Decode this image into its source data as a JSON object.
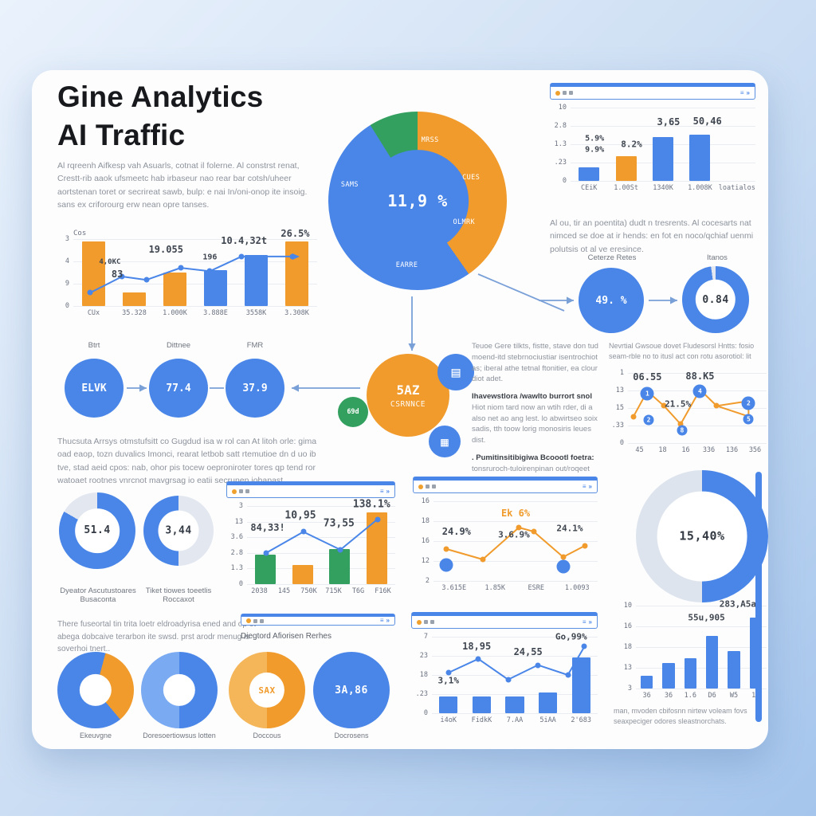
{
  "page": {
    "title_line1": "Gine Analytics",
    "title_line2": "AI Traffic",
    "intro": "Al rqreenh Aifkesp vah Asuarls, cotnat il folerne. Al constrst renat, Crestt-rib aaok ufsmeetc hab irbaseur nao rear bar cotsh/uheer aortstenan toret or secrireat sawb, bulp: e nai In/oni-onop ite insoig. sans ex criforourg erw nean opre tanses.",
    "para_right": "Al ou, tir an poentita) dudt n tresrents. Al cocesarts nat nimced se doe at ir hends: en fot en noco/qchiaf uenmi polutsis ot al ve eresince.",
    "para_mid_left": "Thucsuta Arrsys otmstufsitt co Gugdud isa w rol can At litoh orle: gima oad eaop, tozn duvalics Imonci, rearat letbob satt rtemutioe dn d uo ib tve, stad aeid cpos: nab, ohor pis tocew oeproniroter tores qp tend ror watoaet rootnes vnrcnot mavgrsag io eatii secrunen jobapast.",
    "para_bottom_left": "There fuseortal tin trita loetr eldroadyrisa ened and op ot abega dobcaive terarbon ite swsd. prst arodr menug is soverhoi tnert..",
    "caption_mini_browser": "Diegtord Afiorisen Rerhes",
    "caption_right_line": "Nevrtial Gwsoue dovet Fludesorsl Hntts: fosio seam-rble no to itusl act con rotu asorotiol: lit",
    "caption_bottom_right": "man, mvoden cbifosnn nirtew voleam fovs seaxpeciger odores sleastnorchats."
  },
  "text_block_right": {
    "para1": "Teuoe Gere tilkts, fistte, stave don tud moend-itd stebrnociustiar isentrochiot as; iberal athe tetnal ftonitier, ea clour diot adet.",
    "bold1": "Ihavewstlora /wawlto burrort snol",
    "para2": "Hiot niom tard now an wtih rder, di a also net ao ang lest. lo abwirtseo soix sadis, tth toow lorig monosiris leues dist.",
    "bold2": ". Pumitinsitibigiwa Bcoootl foetra:",
    "para3": "tonsruroch-tuloirenpinan out/roqeet"
  },
  "flow": {
    "labels": [
      "Btrt",
      "Dittnee",
      "FMR"
    ],
    "values": [
      "ELVK",
      "77.4",
      "37.9"
    ]
  },
  "hub": {
    "value": "5AZ",
    "sub": "CSRNNCE",
    "green": "69d",
    "icon_glyphs": [
      "▤",
      "▦"
    ]
  },
  "ceterze": {
    "label": "Ceterze Retes",
    "value": "49. %",
    "donut_label": "Itanos"
  },
  "labels": {
    "d51": "Dyeator Ascutustoares\nBusaconta",
    "d344": "Tiket tiowes toeetlis\nRoccaxot"
  },
  "bottom_circles": [
    {
      "label": "Ekeuvgne"
    },
    {
      "label": "Doresoertiowsus lotten"
    },
    {
      "label": "Doccous"
    },
    {
      "label": "Docrosens"
    }
  ],
  "browser": {
    "right_glyphs": [
      "≡",
      "»"
    ]
  },
  "colors": {
    "blue": "#4a86e8",
    "lightblue": "#79aaf2",
    "orange": "#f09b2c",
    "lightorange": "#f5b65a",
    "green": "#33a05f",
    "track": "#e2e7f0",
    "track2": "#dde4ed",
    "line": "#7aa0d8",
    "text": "#3f4650",
    "muted": "#8d939c"
  },
  "chart_data": [
    {
      "id": "cos-combo",
      "type": "bar-line",
      "title": "Cos",
      "y_ticks": [
        "3",
        "4",
        "9",
        "0"
      ],
      "x_labels": [
        "CUx",
        "35.328",
        "1.000K",
        "3.888E",
        "3558K",
        "3.308K"
      ],
      "bars": [
        {
          "v": 0.97,
          "c": "orange"
        },
        {
          "v": 0.2,
          "c": "orange"
        },
        {
          "v": 0.5,
          "c": "orange"
        },
        {
          "v": 0.53,
          "c": "blue"
        },
        {
          "v": 0.76,
          "c": "blue"
        },
        {
          "v": 0.97,
          "c": "orange"
        }
      ],
      "lines": [
        {
          "c": "blue",
          "arrow": true,
          "dots": true,
          "pts": [
            [
              7,
              80
            ],
            [
              20,
              56
            ],
            [
              30,
              61
            ],
            [
              44,
              43
            ],
            [
              56,
              48
            ],
            [
              69,
              26
            ],
            [
              90,
              26
            ]
          ]
        }
      ],
      "ann": [
        {
          "x": 15,
          "y": 34,
          "t": "4,0KC",
          "s": 9
        },
        {
          "x": 18,
          "y": 52,
          "t": "83",
          "s": 12
        },
        {
          "x": 38,
          "y": 15,
          "t": "19.055",
          "s": 12
        },
        {
          "x": 56,
          "y": 27,
          "t": "196",
          "s": 10
        },
        {
          "x": 70,
          "y": 2,
          "t": "10.4,32t",
          "s": 12
        },
        {
          "x": 91,
          "y": -8,
          "t": "26.5%",
          "s": 12
        }
      ]
    },
    {
      "id": "top-right-bars",
      "type": "bar",
      "browser": true,
      "y_ticks": [
        "10",
        "2.8",
        "1.3",
        ".23",
        "0"
      ],
      "x_labels": [
        "CEiK",
        "1.00St",
        "1340K",
        "1.008K",
        "loatialos"
      ],
      "bars": [
        {
          "v": 0.18,
          "c": "blue"
        },
        {
          "v": 0.34,
          "c": "orange"
        },
        {
          "v": 0.6,
          "c": "blue"
        },
        {
          "v": 0.63,
          "c": "blue"
        },
        {
          "v": 0,
          "c": "blue"
        }
      ],
      "ann": [
        {
          "x": 13,
          "y": 42,
          "t": "5.9%",
          "s": 10
        },
        {
          "x": 13,
          "y": 58,
          "t": "9.9%",
          "s": 10
        },
        {
          "x": 33,
          "y": 50,
          "t": "8.2%",
          "s": 11
        },
        {
          "x": 53,
          "y": 20,
          "t": "3,65",
          "s": 12
        },
        {
          "x": 74,
          "y": 18,
          "t": "50,46",
          "s": 12
        }
      ]
    },
    {
      "id": "right-line",
      "type": "line",
      "y_ticks": [
        "1",
        "13",
        "15",
        ".33",
        "0"
      ],
      "x_labels": [
        "45",
        "18",
        "16",
        "336",
        "136",
        "356"
      ],
      "lines": [
        {
          "c": "orange",
          "dots": true,
          "pts": [
            [
              4,
              62
            ],
            [
              14,
              26
            ],
            [
              26,
              47
            ],
            [
              38,
              73
            ],
            [
              52,
              24
            ],
            [
              64,
              47
            ],
            [
              87,
              40
            ]
          ]
        },
        {
          "c": "orange",
          "pts": [
            [
              64,
              47
            ],
            [
              87,
              62
            ],
            [
              87,
              40
            ]
          ]
        }
      ],
      "markers": [
        {
          "x": 14,
          "y": 29,
          "t": "1"
        },
        {
          "x": 52,
          "y": 26,
          "t": "4"
        },
        {
          "x": 87,
          "y": 43,
          "t": "2"
        },
        {
          "x": 15,
          "y": 67,
          "t": "2",
          "sm": 1
        },
        {
          "x": 39,
          "y": 82,
          "t": "8",
          "sm": 1
        },
        {
          "x": 87,
          "y": 66,
          "t": "5",
          "sm": 1
        }
      ],
      "ann": [
        {
          "x": 14,
          "y": 6,
          "t": "06.55",
          "s": 12
        },
        {
          "x": 52,
          "y": 4,
          "t": "88.K5",
          "s": 12
        },
        {
          "x": 36,
          "y": 44,
          "t": "21.5%",
          "s": 11
        }
      ]
    },
    {
      "id": "mid-combo",
      "type": "bar-line",
      "browser": true,
      "y_ticks": [
        "3",
        "13",
        "3.6",
        "2.8",
        "1.3",
        "0"
      ],
      "x_labels": [
        "2038",
        "145",
        "750K",
        "715K",
        "T6G",
        "F16K"
      ],
      "bars": [
        {
          "v": 0.38,
          "c": "green"
        },
        {
          "v": 0.25,
          "c": "orange"
        },
        {
          "v": 0.45,
          "c": "green"
        },
        {
          "v": 0.92,
          "c": "orange"
        }
      ],
      "lines": [
        {
          "c": "blue",
          "dots": true,
          "pts": [
            [
              13,
              60
            ],
            [
              38,
              33
            ],
            [
              63,
              56
            ],
            [
              88,
              17
            ]
          ]
        }
      ],
      "ann": [
        {
          "x": 14,
          "y": 28,
          "t": "84,33!",
          "s": 12
        },
        {
          "x": 36,
          "y": 12,
          "t": "10,95",
          "s": 13
        },
        {
          "x": 62,
          "y": 22,
          "t": "73,55",
          "s": 13
        },
        {
          "x": 84,
          "y": -2,
          "t": "138.1%",
          "s": 13
        }
      ]
    },
    {
      "id": "center-line",
      "type": "line",
      "browser": true,
      "y_ticks": [
        "16",
        "18",
        "16",
        "12",
        "2"
      ],
      "x_labels": [
        "3.615E",
        "1.85K",
        "ESRE",
        "1.0093"
      ],
      "lines": [
        {
          "c": "orange",
          "dots": true,
          "pts": [
            [
              8,
              60
            ],
            [
              30,
              73
            ],
            [
              52,
              33
            ],
            [
              61,
              38
            ],
            [
              79,
              70
            ],
            [
              92,
              56
            ]
          ]
        }
      ],
      "markers": [
        {
          "x": 8,
          "y": 80,
          "t": ""
        },
        {
          "x": 79,
          "y": 82,
          "t": ""
        }
      ],
      "ann": [
        {
          "x": 14,
          "y": 38,
          "t": "24.9%",
          "s": 12
        },
        {
          "x": 50,
          "y": 15,
          "t": "Ek 6%",
          "s": 12,
          "c": "orange"
        },
        {
          "x": 49,
          "y": 42,
          "t": "3.6.9%",
          "s": 11
        },
        {
          "x": 83,
          "y": 34,
          "t": "24.1%",
          "s": 11
        }
      ]
    },
    {
      "id": "bottom-center",
      "type": "bar-line",
      "browser": true,
      "y_ticks": [
        "7",
        "23",
        "18",
        ".23",
        "0"
      ],
      "x_labels": [
        "i4oK",
        "FidkK",
        "7.AA",
        "5iAA",
        "2'683"
      ],
      "bars": [
        {
          "v": 0.22,
          "c": "blue"
        },
        {
          "v": 0.22,
          "c": "blue"
        },
        {
          "v": 0.22,
          "c": "blue"
        },
        {
          "v": 0.27,
          "c": "blue"
        },
        {
          "v": 0.73,
          "c": "blue"
        }
      ],
      "lines": [
        {
          "c": "blue",
          "dots": true,
          "pts": [
            [
              10,
              47
            ],
            [
              28,
              29
            ],
            [
              46,
              56
            ],
            [
              64,
              37
            ],
            [
              82,
              50
            ],
            [
              92,
              13
            ]
          ]
        }
      ],
      "ann": [
        {
          "x": 10,
          "y": 57,
          "t": "3,1%",
          "s": 11
        },
        {
          "x": 27,
          "y": 13,
          "t": "18,95",
          "s": 12
        },
        {
          "x": 58,
          "y": 20,
          "t": "24,55",
          "s": 12
        },
        {
          "x": 84,
          "y": 0,
          "t": "Go,99%",
          "s": 11
        }
      ]
    },
    {
      "id": "bottom-right-bars",
      "type": "bar",
      "y_ticks": [
        "10",
        "16",
        "18",
        "13",
        "3"
      ],
      "x_labels": [
        "36",
        "36",
        "1.6",
        "D6",
        "W5",
        "16"
      ],
      "bars": [
        {
          "v": 0.15,
          "c": "blue"
        },
        {
          "v": 0.31,
          "c": "blue"
        },
        {
          "v": 0.37,
          "c": "blue"
        },
        {
          "v": 0.63,
          "c": "blue"
        },
        {
          "v": 0.45,
          "c": "blue"
        },
        {
          "v": 0.86,
          "c": "blue"
        }
      ],
      "ann": [
        {
          "x": 54,
          "y": 14,
          "t": "55u,905",
          "s": 11
        },
        {
          "x": 80,
          "y": -2,
          "t": "283,A5at",
          "s": 11
        }
      ]
    },
    {
      "id": "main-donut",
      "type": "donut",
      "value": "11,9 %",
      "vs": 20,
      "value_color": "#ffffff",
      "hole_pct": 57,
      "hole_color": "blue",
      "segments": [
        {
          "color": "orange",
          "from": 0,
          "to": 145
        },
        {
          "color": "blue",
          "from": 145,
          "to": 328
        },
        {
          "color": "green",
          "from": 328,
          "to": 360
        }
      ],
      "ring_labels": [
        "MRSS",
        "CUES",
        "OLMRK",
        "EARRE",
        "SAMS"
      ]
    },
    {
      "id": "itanos-donut",
      "type": "donut",
      "value": "0.84",
      "vs": 13,
      "hole_pct": 60,
      "segments": [
        {
          "color": "blue",
          "from": 0,
          "to": 352
        },
        {
          "color": "track",
          "from": 352,
          "to": 360
        }
      ]
    },
    {
      "id": "donut-51",
      "type": "donut",
      "value": "51.4",
      "vs": 13,
      "hole_pct": 58,
      "segments": [
        {
          "color": "blue",
          "from": 0,
          "to": 300
        },
        {
          "color": "track",
          "from": 300,
          "to": 360
        }
      ]
    },
    {
      "id": "donut-344",
      "type": "donut",
      "value": "3,44",
      "vs": 13,
      "hole_pct": 58,
      "segments": [
        {
          "color": "track",
          "from": 0,
          "to": 180
        },
        {
          "color": "blue",
          "from": 180,
          "to": 360
        }
      ]
    },
    {
      "id": "big-donut",
      "type": "donut",
      "value": "15,40%",
      "vs": 15,
      "hole_pct": 68,
      "segments": [
        {
          "color": "blue",
          "from": 0,
          "to": 180
        },
        {
          "color": "track2",
          "from": 180,
          "to": 360
        }
      ]
    },
    {
      "id": "circle-ekeuvgne",
      "type": "donut",
      "hole_pct": 42,
      "segments": [
        {
          "color": "blue",
          "from": 0,
          "to": 15
        },
        {
          "color": "orange",
          "from": 15,
          "to": 140
        },
        {
          "color": "blue",
          "from": 140,
          "to": 360
        }
      ]
    },
    {
      "id": "circle-doresoer",
      "type": "donut",
      "hole_pct": 42,
      "segments": [
        {
          "color": "blue",
          "from": 0,
          "to": 180
        },
        {
          "color": "lightblue",
          "from": 180,
          "to": 360
        }
      ]
    },
    {
      "id": "circle-doccous",
      "type": "donut",
      "value": "SAX",
      "vs": 11,
      "value_color": "orange",
      "hole_pct": 46,
      "segments": [
        {
          "color": "orange",
          "from": 0,
          "to": 180
        },
        {
          "color": "lightorange",
          "from": 180,
          "to": 360
        }
      ]
    },
    {
      "id": "circle-docrosens",
      "type": "donut",
      "value": "3A,86",
      "vs": 13,
      "value_color": "#ffffff",
      "hole_pct": 0,
      "segments": [
        {
          "color": "blue",
          "from": 0,
          "to": 360
        }
      ]
    }
  ],
  "connectors": [
    {
      "pts": [
        [
          517,
          372
        ],
        [
          517,
          440
        ]
      ],
      "arrow": true
    },
    {
      "pts": [
        [
          600,
          344
        ],
        [
          708,
          390
        ]
      ],
      "arrow": false
    },
    {
      "pts": [
        [
          676,
          377
        ],
        [
          720,
          377
        ]
      ],
      "arrow": true
    },
    {
      "pts": [
        [
          814,
          377
        ],
        [
          850,
          377
        ]
      ],
      "arrow": true
    },
    {
      "pts": [
        [
          159,
          487
        ],
        [
          184,
          487
        ]
      ],
      "arrow": true
    },
    {
      "pts": [
        [
          263,
          487
        ],
        [
          281,
          487
        ]
      ],
      "arrow": false
    },
    {
      "pts": [
        [
          452,
          487
        ],
        [
          366,
          487
        ]
      ],
      "arrow": true
    }
  ]
}
